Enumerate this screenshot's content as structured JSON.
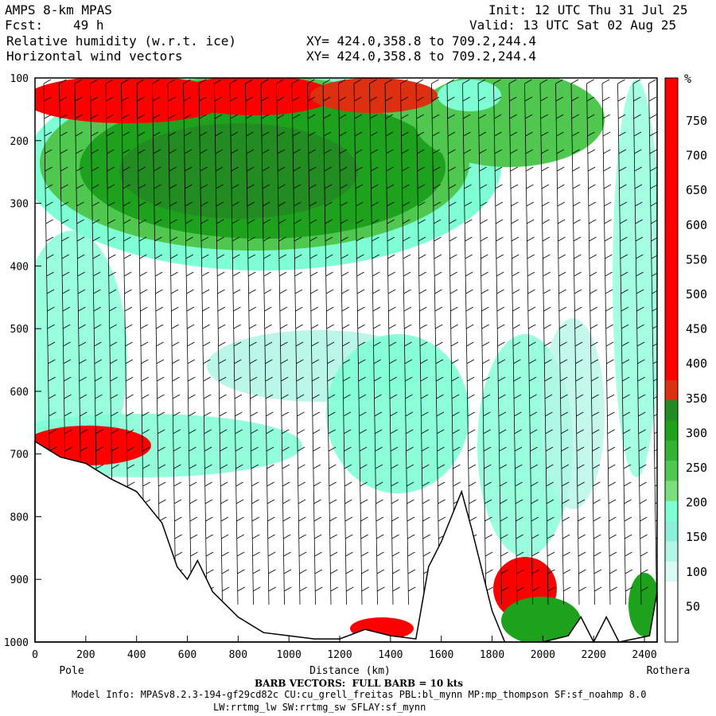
{
  "header": {
    "model": "AMPS 8-km MPAS",
    "fcst_label": "Fcst:",
    "fcst_value": "49 h",
    "field1": "Relative humidity (w.r.t. ice)",
    "field2": "Horizontal wind vectors",
    "init": "Init: 12 UTC Thu 31 Jul 25",
    "valid": "Valid: 13 UTC Sat 02 Aug 25",
    "xy1": "XY= 424.0,358.8 to 709.2,244.4",
    "xy2": "XY= 424.0,358.8 to 709.2,244.4"
  },
  "chart_data": {
    "type": "heatmap",
    "title": "Relative humidity (w.r.t. ice)",
    "xlabel": "Distance (km)",
    "ylabel": "",
    "x_range": [
      0,
      2450
    ],
    "y_range": [
      100,
      1000
    ],
    "y_inverted": true,
    "x_ticks": [
      "0",
      "200",
      "400",
      "600",
      "800",
      "1000",
      "1200",
      "1400",
      "1600",
      "1800",
      "2000",
      "2200",
      "2400"
    ],
    "y_ticks": [
      "100",
      "200",
      "300",
      "400",
      "500",
      "600",
      "700",
      "800",
      "900",
      "1000"
    ],
    "left_end_label": "Pole",
    "right_end_label": "Rothera",
    "colorbar": {
      "unit": "%",
      "labels": [
        "750",
        "700",
        "650",
        "600",
        "550",
        "500",
        "450",
        "400",
        "350",
        "300",
        "250",
        "200",
        "150",
        "100",
        "50"
      ],
      "colors": [
        "#ff0000",
        "#ff0000",
        "#ff0000",
        "#ff0000",
        "#ff0000",
        "#ff0000",
        "#ff0000",
        "#ff0000",
        "#ff0000",
        "#ff0000",
        "#ff0000",
        "#ff0000",
        "#ff0000",
        "#ff0000",
        "#ff0000",
        "#dd3010",
        "#228b22",
        "#1ea21e",
        "#32b432",
        "#50c850",
        "#7be07b",
        "#7fffd4",
        "#8cf0d8",
        "#b4f6e6",
        "#d9fbf3",
        "#ffffff",
        "#ffffff",
        "#ffffff"
      ]
    },
    "terrain_surface": [
      [
        0,
        680
      ],
      [
        100,
        705
      ],
      [
        200,
        715
      ],
      [
        300,
        740
      ],
      [
        400,
        760
      ],
      [
        500,
        810
      ],
      [
        560,
        880
      ],
      [
        600,
        900
      ],
      [
        640,
        870
      ],
      [
        700,
        920
      ],
      [
        800,
        960
      ],
      [
        900,
        985
      ],
      [
        1000,
        990
      ],
      [
        1100,
        995
      ],
      [
        1200,
        995
      ],
      [
        1300,
        980
      ],
      [
        1400,
        990
      ],
      [
        1500,
        995
      ],
      [
        1550,
        880
      ],
      [
        1600,
        840
      ],
      [
        1680,
        760
      ],
      [
        1720,
        820
      ],
      [
        1800,
        950
      ],
      [
        1850,
        1000
      ],
      [
        2000,
        1000
      ],
      [
        2100,
        990
      ],
      [
        2150,
        960
      ],
      [
        2200,
        1000
      ],
      [
        2250,
        960
      ],
      [
        2300,
        1000
      ],
      [
        2420,
        990
      ],
      [
        2450,
        920
      ]
    ],
    "barb_note": "BARB VECTORS:  FULL BARB = 10 kts"
  },
  "footer": {
    "barb_text": "BARB VECTORS:  FULL BARB = 10 kts",
    "model_info": "Model Info: MPASv8.2.3-194-gf29cd82c CU:cu_grell_freitas PBL:bl_mynn MP:mp_thompson SF:sf_noahmp 8.0",
    "model_info2": "LW:rrtmg_lw SW:rrtmg_sw SFLAY:sf_mynn"
  }
}
